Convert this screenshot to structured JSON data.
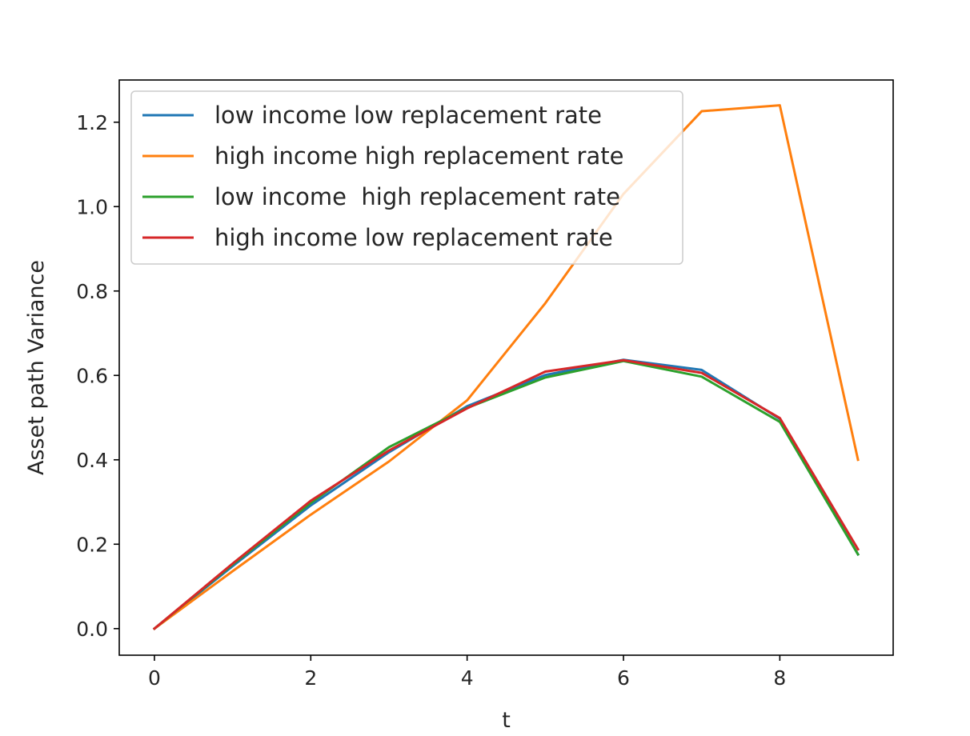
{
  "chart_data": {
    "type": "line",
    "title": "",
    "xlabel": "t",
    "ylabel": "Asset path Variance",
    "xlim": [
      -0.45,
      9.45
    ],
    "ylim": [
      -0.063,
      1.3
    ],
    "xticks": [
      0,
      2,
      4,
      6,
      8
    ],
    "yticks": [
      0.0,
      0.2,
      0.4,
      0.6,
      0.8,
      1.0,
      1.2
    ],
    "grid": false,
    "legend_position": "upper-left",
    "x": [
      0,
      1,
      2,
      3,
      4,
      5,
      6,
      7,
      8,
      9
    ],
    "series": [
      {
        "name": "low income low replacement rate",
        "color": "#1f77b4",
        "values": [
          0.0,
          0.148,
          0.292,
          0.418,
          0.527,
          0.601,
          0.637,
          0.613,
          0.497,
          0.176
        ]
      },
      {
        "name": "high income high replacement rate",
        "color": "#ff7f0e",
        "values": [
          0.0,
          0.136,
          0.27,
          0.396,
          0.541,
          0.771,
          1.03,
          1.226,
          1.24,
          0.4
        ]
      },
      {
        "name": "low income  high replacement rate",
        "color": "#2ca02c",
        "values": [
          0.0,
          0.152,
          0.298,
          0.43,
          0.523,
          0.595,
          0.634,
          0.597,
          0.49,
          0.176
        ]
      },
      {
        "name": "high income low replacement rate",
        "color": "#d62728",
        "values": [
          0.0,
          0.154,
          0.303,
          0.422,
          0.522,
          0.609,
          0.636,
          0.606,
          0.499,
          0.188
        ]
      }
    ]
  }
}
